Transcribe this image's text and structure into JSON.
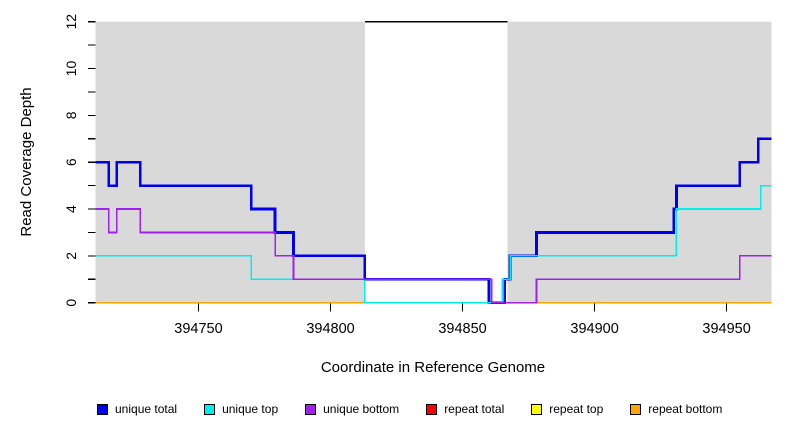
{
  "chart_data": {
    "type": "line",
    "subtype": "step-coverage-plot",
    "title": "",
    "xlabel": "Coordinate in Reference Genome",
    "ylabel": "Read Coverage Depth",
    "x_range": [
      394711,
      394967
    ],
    "y_range": [
      0,
      12
    ],
    "x_ticks": [
      394750,
      394800,
      394850,
      394900,
      394950
    ],
    "y_ticks_all": [
      0,
      1,
      2,
      3,
      4,
      5,
      6,
      7,
      8,
      9,
      10,
      11,
      12
    ],
    "y_ticks_labeled": [
      0,
      2,
      4,
      6,
      8,
      10,
      12
    ],
    "grid": "off",
    "plot_background_color": "#D9D9D9",
    "shaded_regions": [
      [
        394711,
        394813
      ],
      [
        394867,
        394967
      ]
    ],
    "gap_region": [
      394813,
      394867
    ],
    "annotation_line": {
      "y": 12,
      "x_start": 394813,
      "x_end": 394867,
      "color": "#000000"
    },
    "series": [
      {
        "name": "unique total",
        "color": "#0000EE",
        "width": 2.7,
        "steps": [
          [
            394711,
            6
          ],
          [
            394716,
            5
          ],
          [
            394719,
            6
          ],
          [
            394728,
            5
          ],
          [
            394770,
            4
          ],
          [
            394779,
            3
          ],
          [
            394786,
            2
          ],
          [
            394813,
            1
          ],
          [
            394860,
            0
          ],
          [
            394866,
            1
          ],
          [
            394868,
            2
          ],
          [
            394878,
            3
          ],
          [
            394930,
            4
          ],
          [
            394931,
            5
          ],
          [
            394955,
            6
          ],
          [
            394962,
            7
          ]
        ]
      },
      {
        "name": "repeat total",
        "color": "#FF0000",
        "width": 1.6,
        "steps": [
          [
            394711,
            0
          ]
        ]
      },
      {
        "name": "repeat top",
        "color": "#FFFF00",
        "width": 1.6,
        "steps": [
          [
            394711,
            0
          ]
        ]
      },
      {
        "name": "repeat bottom",
        "color": "#FFA500",
        "width": 1.8,
        "steps": [
          [
            394711,
            0
          ]
        ]
      },
      {
        "name": "unique top",
        "color": "#00EEEE",
        "width": 1.6,
        "steps": [
          [
            394711,
            2
          ],
          [
            394770,
            1
          ],
          [
            394813,
            0
          ],
          [
            394865,
            1
          ],
          [
            394868,
            2
          ],
          [
            394931,
            4
          ],
          [
            394963,
            5
          ]
        ]
      },
      {
        "name": "unique bottom",
        "color": "#A020F0",
        "width": 1.6,
        "steps": [
          [
            394711,
            4
          ],
          [
            394716,
            3
          ],
          [
            394719,
            4
          ],
          [
            394728,
            3
          ],
          [
            394779,
            2
          ],
          [
            394786,
            1
          ],
          [
            394861,
            0
          ],
          [
            394878,
            1
          ],
          [
            394955,
            2
          ]
        ]
      }
    ],
    "legend": [
      {
        "label": "unique total",
        "color": "#0000EE"
      },
      {
        "label": "unique top",
        "color": "#00EEEE"
      },
      {
        "label": "unique bottom",
        "color": "#A020F0"
      },
      {
        "label": "repeat total",
        "color": "#FF0000"
      },
      {
        "label": "repeat top",
        "color": "#FFFF00"
      },
      {
        "label": "repeat bottom",
        "color": "#FFA500"
      }
    ],
    "legend_position": "bottom"
  }
}
